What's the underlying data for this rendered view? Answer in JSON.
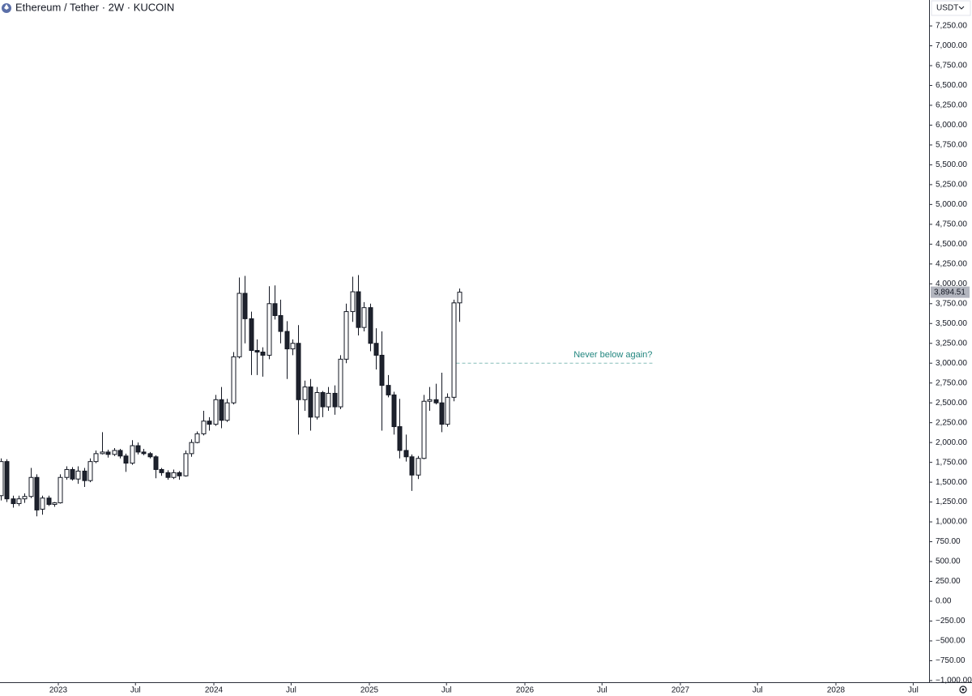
{
  "chart_data": {
    "type": "candlestick",
    "title": "Ethereum / Tether · 2W · KUCOIN",
    "currency": "USDT",
    "up_color": "#ffffff",
    "down_color": "#1e222d",
    "x": [
      2022.629,
      2022.667,
      2022.706,
      2022.744,
      2022.782,
      2022.821,
      2022.859,
      2022.897,
      2022.935,
      2022.974,
      2023.012,
      2023.05,
      2023.089,
      2023.127,
      2023.165,
      2023.204,
      2023.242,
      2023.28,
      2023.318,
      2023.357,
      2023.395,
      2023.433,
      2023.472,
      2023.51,
      2023.548,
      2023.587,
      2023.625,
      2023.663,
      2023.701,
      2023.74,
      2023.778,
      2023.816,
      2023.855,
      2023.893,
      2023.931,
      2023.97,
      2024.008,
      2024.046,
      2024.084,
      2024.123,
      2024.161,
      2024.199,
      2024.238,
      2024.276,
      2024.314,
      2024.353,
      2024.391,
      2024.429,
      2024.467,
      2024.506,
      2024.544,
      2024.582,
      2024.621,
      2024.659,
      2024.697,
      2024.736,
      2024.774,
      2024.812,
      2024.85,
      2024.889,
      2024.927,
      2024.965,
      2025.004,
      2025.042,
      2025.08,
      2025.119,
      2025.157,
      2025.195,
      2025.233,
      2025.272,
      2025.31,
      2025.348,
      2025.387,
      2025.425,
      2025.463,
      2025.502,
      2025.54,
      2025.578
    ],
    "open": [
      1330,
      1760,
      1290,
      1230,
      1290,
      1320,
      1560,
      1160,
      1300,
      1220,
      1240,
      1560,
      1660,
      1540,
      1640,
      1520,
      1760,
      1860,
      1880,
      1850,
      1900,
      1830,
      1740,
      1960,
      1880,
      1860,
      1820,
      1660,
      1620,
      1560,
      1620,
      1580,
      1860,
      2000,
      2110,
      2270,
      2230,
      2540,
      2280,
      2500,
      3080,
      3880,
      3560,
      3160,
      3140,
      3100,
      3750,
      3600,
      3400,
      3180,
      3250,
      2540,
      2700,
      2320,
      2630,
      2450,
      2620,
      2450,
      3050,
      3650,
      3900,
      3450,
      3700,
      3250,
      3100,
      2720,
      2600,
      2200,
      1900,
      1820,
      1590,
      1800,
      2520,
      2540,
      2500,
      2230,
      2570,
      3760
    ],
    "high": [
      1800,
      1790,
      1330,
      1330,
      1360,
      1680,
      1600,
      1330,
      1330,
      1250,
      1600,
      1700,
      1690,
      1700,
      1680,
      1800,
      1900,
      2130,
      1910,
      1930,
      1920,
      1860,
      2030,
      2000,
      1920,
      1880,
      1840,
      1680,
      1650,
      1660,
      1640,
      1900,
      2040,
      2140,
      2400,
      2320,
      2600,
      2700,
      2550,
      3140,
      4080,
      4100,
      3650,
      3300,
      3200,
      3970,
      3980,
      3800,
      3530,
      3300,
      3480,
      2780,
      2800,
      2700,
      2650,
      2700,
      2720,
      3100,
      3750,
      4090,
      4110,
      3770,
      3750,
      3440,
      3400,
      2850,
      2640,
      2550,
      2100,
      1850,
      1830,
      2600,
      2700,
      2740,
      2880,
      2620,
      3800,
      3940
    ],
    "low": [
      1270,
      1250,
      1180,
      1200,
      1240,
      1300,
      1070,
      1090,
      1200,
      1190,
      1230,
      1530,
      1520,
      1480,
      1440,
      1500,
      1740,
      1850,
      1810,
      1830,
      1800,
      1630,
      1720,
      1850,
      1840,
      1800,
      1550,
      1580,
      1530,
      1540,
      1530,
      1570,
      1820,
      1990,
      2090,
      2150,
      2210,
      2180,
      2260,
      2480,
      3060,
      3250,
      2850,
      2850,
      2830,
      3050,
      3550,
      3250,
      2800,
      3100,
      2100,
      2400,
      2150,
      2290,
      2320,
      2400,
      2350,
      2420,
      3000,
      3520,
      3350,
      3400,
      3150,
      2920,
      2150,
      2570,
      2100,
      1800,
      1760,
      1390,
      1540,
      1790,
      2400,
      2480,
      2130,
      2200,
      2520,
      3520
    ],
    "close": [
      1760,
      1290,
      1230,
      1290,
      1320,
      1560,
      1150,
      1300,
      1220,
      1240,
      1560,
      1660,
      1540,
      1640,
      1520,
      1760,
      1860,
      1880,
      1850,
      1900,
      1830,
      1740,
      1960,
      1880,
      1860,
      1820,
      1660,
      1620,
      1560,
      1620,
      1580,
      1860,
      2000,
      2110,
      2270,
      2230,
      2540,
      2280,
      2500,
      3080,
      3880,
      3560,
      3160,
      3140,
      3100,
      3750,
      3600,
      3400,
      3180,
      3250,
      2540,
      2700,
      2320,
      2630,
      2450,
      2620,
      2450,
      3050,
      3650,
      3900,
      3450,
      3700,
      3250,
      3100,
      2720,
      2600,
      2200,
      1900,
      1820,
      1590,
      1800,
      2520,
      2540,
      2500,
      2230,
      2570,
      3760,
      3894.51
    ],
    "last_price_label": "3,894.51",
    "xlim": [
      2022.625,
      2028.599
    ],
    "xticks": [
      2023,
      {
        "value": 2023.496,
        "label": "Jul"
      },
      2024,
      {
        "value": 2024.497,
        "label": "Jul"
      },
      2025,
      {
        "value": 2025.496,
        "label": "Jul"
      },
      2026,
      {
        "value": 2026.496,
        "label": "Jul"
      },
      2027,
      {
        "value": 2027.496,
        "label": "Jul"
      },
      2028,
      {
        "value": 2028.497,
        "label": "Jul"
      }
    ],
    "ylim": [
      -1021,
      7577
    ],
    "yticks": [
      {
        "value": 7250,
        "label": "7,250.00"
      },
      {
        "value": 7000,
        "label": "7,000.00"
      },
      {
        "value": 6750,
        "label": "6,750.00"
      },
      {
        "value": 6500,
        "label": "6,500.00"
      },
      {
        "value": 6250,
        "label": "6,250.00"
      },
      {
        "value": 6000,
        "label": "6,000.00"
      },
      {
        "value": 5750,
        "label": "5,750.00"
      },
      {
        "value": 5500,
        "label": "5,500.00"
      },
      {
        "value": 5250,
        "label": "5,250.00"
      },
      {
        "value": 5000,
        "label": "5,000.00"
      },
      {
        "value": 4750,
        "label": "4,750.00"
      },
      {
        "value": 4500,
        "label": "4,500.00"
      },
      {
        "value": 4250,
        "label": "4,250.00"
      },
      {
        "value": 4000,
        "label": "4,000.00"
      },
      {
        "value": 3750,
        "label": "3,750.00"
      },
      {
        "value": 3500,
        "label": "3,500.00"
      },
      {
        "value": 3250,
        "label": "3,250.00"
      },
      {
        "value": 3000,
        "label": "3,000.00"
      },
      {
        "value": 2750,
        "label": "2,750.00"
      },
      {
        "value": 2500,
        "label": "2,500.00"
      },
      {
        "value": 2250,
        "label": "2,250.00"
      },
      {
        "value": 2000,
        "label": "2,000.00"
      },
      {
        "value": 1750,
        "label": "1,750.00"
      },
      {
        "value": 1500,
        "label": "1,500.00"
      },
      {
        "value": 1250,
        "label": "1,250.00"
      },
      {
        "value": 1000,
        "label": "1,000.00"
      },
      {
        "value": 750,
        "label": "750.00"
      },
      {
        "value": 500,
        "label": "500.00"
      },
      {
        "value": 250,
        "label": "250.00"
      },
      {
        "value": 0,
        "label": "0.00"
      },
      {
        "value": -250,
        "label": "−250.00"
      },
      {
        "value": -500,
        "label": "−500.00"
      },
      {
        "value": -750,
        "label": "−750.00"
      },
      {
        "value": -1000,
        "label": "−1,000.00"
      }
    ],
    "annotation": {
      "text": "Never below again?",
      "level": 3000,
      "x_start": 2025.56,
      "x_end": 2026.82,
      "color": "#22867f"
    }
  }
}
